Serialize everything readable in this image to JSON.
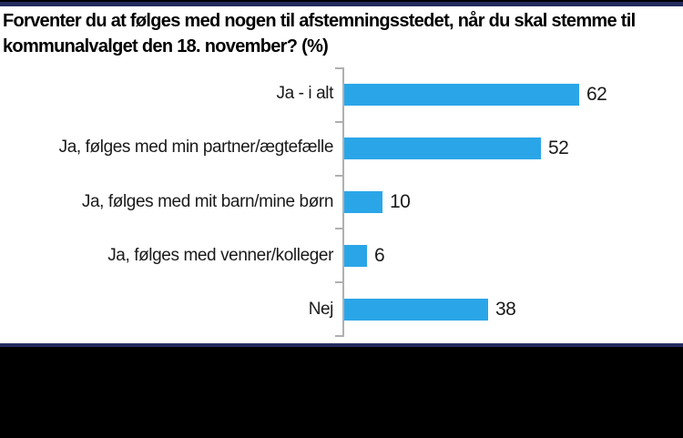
{
  "title": {
    "line1": "Forventer du at følges med nogen til afstemningsstedet, når du skal stemme til",
    "line2": "kommunalvalget den 18. november? (%)"
  },
  "chart_data": {
    "type": "bar",
    "orientation": "horizontal",
    "title": "Forventer du at følges med nogen til afstemningsstedet, når du skal stemme til kommunalvalget den 18. november? (%)",
    "categories": [
      "Ja - i alt",
      "Ja, følges med min partner/ægtefælle",
      "Ja, følges med mit barn/mine børn",
      "Ja, følges med venner/kolleger",
      "Nej"
    ],
    "values": [
      62,
      52,
      10,
      6,
      38
    ],
    "xlabel": "",
    "ylabel": "",
    "xlim": [
      0,
      88
    ],
    "grid": false,
    "legend": false,
    "value_label_position": "end-of-bar"
  },
  "colors": {
    "bar": "#2AA6E8",
    "navy_stripe": "#232B5E",
    "axis": "#B0B0B0",
    "text": "#1A1A1A",
    "title_text": "#000000",
    "background": "#FFFFFF",
    "footer": "#000000"
  }
}
